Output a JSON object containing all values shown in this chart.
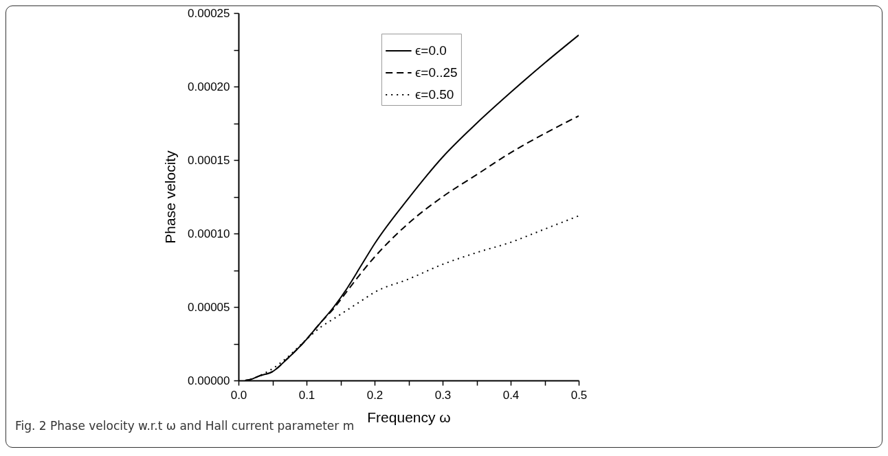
{
  "chart_data": {
    "type": "line",
    "xlabel": "Frequency ω",
    "ylabel": "Phase velocity",
    "annotations": [
      "Fig. 2 Phase velocity w.r.t ω and Hall current parameter m"
    ],
    "x": [
      0.01,
      0.02,
      0.03,
      0.05,
      0.07,
      0.1,
      0.12,
      0.14,
      0.16,
      0.18,
      0.2,
      0.25,
      0.3,
      0.35,
      0.4,
      0.45,
      0.5
    ],
    "series": [
      {
        "name": "ϵ=0.0",
        "color": "#000000",
        "line_style": "solid",
        "values": [
          0,
          1e-06,
          3e-06,
          6e-06,
          1.4e-05,
          2.8e-05,
          3.9e-05,
          5e-05,
          6.3e-05,
          7.8e-05,
          9.3e-05,
          0.000124,
          0.000152,
          0.000175,
          0.000196,
          0.000216,
          0.000235
        ]
      },
      {
        "name": "ϵ=0..25",
        "color": "#000000",
        "line_style": "dashed",
        "values": [
          0,
          1e-06,
          3e-06,
          6e-06,
          1.4e-05,
          2.8e-05,
          3.9e-05,
          4.9e-05,
          6.1e-05,
          7.3e-05,
          8.4e-05,
          0.000107,
          0.000125,
          0.00014,
          0.000155,
          0.000168,
          0.00018
        ]
      },
      {
        "name": "ϵ=0.50",
        "color": "#000000",
        "line_style": "dotted",
        "values": [
          0,
          1e-06,
          3e-06,
          8e-06,
          1.5e-05,
          2.8e-05,
          3.6e-05,
          4.2e-05,
          4.8e-05,
          5.4e-05,
          6e-05,
          6.9e-05,
          7.9e-05,
          8.7e-05,
          9.4e-05,
          0.000103,
          0.000112
        ]
      }
    ],
    "xlim": [
      0,
      0.5
    ],
    "xticks": [
      {
        "value": 0,
        "label": "0.0"
      },
      {
        "value": 0.05,
        "label": null
      },
      {
        "value": 0.1,
        "label": "0.1"
      },
      {
        "value": 0.15,
        "label": null
      },
      {
        "value": 0.2,
        "label": "0.2"
      },
      {
        "value": 0.25,
        "label": null
      },
      {
        "value": 0.3,
        "label": "0.3"
      },
      {
        "value": 0.35,
        "label": null
      },
      {
        "value": 0.4,
        "label": "0.4"
      },
      {
        "value": 0.45,
        "label": null
      },
      {
        "value": 0.5,
        "label": "0.5"
      }
    ],
    "ylim": [
      0,
      0.00025
    ],
    "yticks": [
      {
        "value": 0,
        "label": "0.00000"
      },
      {
        "value": 2.5e-05,
        "label": null
      },
      {
        "value": 5e-05,
        "label": "0.00005"
      },
      {
        "value": 7.5e-05,
        "label": null
      },
      {
        "value": 0.0001,
        "label": "0.00010"
      },
      {
        "value": 0.000125,
        "label": null
      },
      {
        "value": 0.00015,
        "label": "0.00015"
      },
      {
        "value": 0.000175,
        "label": null
      },
      {
        "value": 0.0002,
        "label": "0.00020"
      },
      {
        "value": 0.000225,
        "label": null
      },
      {
        "value": 0.00025,
        "label": "0.00025"
      }
    ],
    "grid": false,
    "legend": "top",
    "marker": "none"
  }
}
